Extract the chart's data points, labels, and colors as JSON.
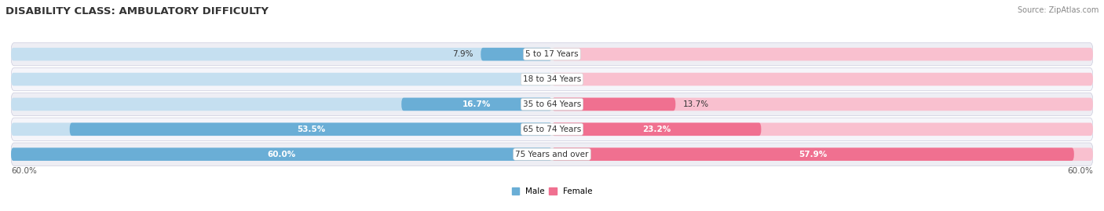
{
  "title": "DISABILITY CLASS: AMBULATORY DIFFICULTY",
  "source": "Source: ZipAtlas.com",
  "categories": [
    "5 to 17 Years",
    "18 to 34 Years",
    "35 to 64 Years",
    "65 to 74 Years",
    "75 Years and over"
  ],
  "male_values": [
    7.9,
    0.0,
    16.7,
    53.5,
    60.0
  ],
  "female_values": [
    0.0,
    0.0,
    13.7,
    23.2,
    57.9
  ],
  "male_color": "#6aaed6",
  "female_color": "#f07090",
  "male_track_color": "#c5dff0",
  "female_track_color": "#f9c0cf",
  "row_bg_even": "#eeeef4",
  "row_bg_odd": "#f5f5fa",
  "max_val": 60.0,
  "bar_height": 0.52,
  "title_fontsize": 9.5,
  "label_fontsize": 7.5,
  "tick_fontsize": 7.5,
  "legend_fontsize": 7.5,
  "source_fontsize": 7.0
}
